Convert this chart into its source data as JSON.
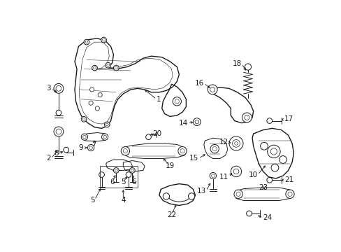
{
  "bg_color": "#ffffff",
  "line_color": "#1a1a1a",
  "figsize": [
    4.89,
    3.6
  ],
  "dpi": 100,
  "label_fontsize": 7.5,
  "lw_main": 1.0,
  "lw_thin": 0.7,
  "lw_part": 0.65
}
